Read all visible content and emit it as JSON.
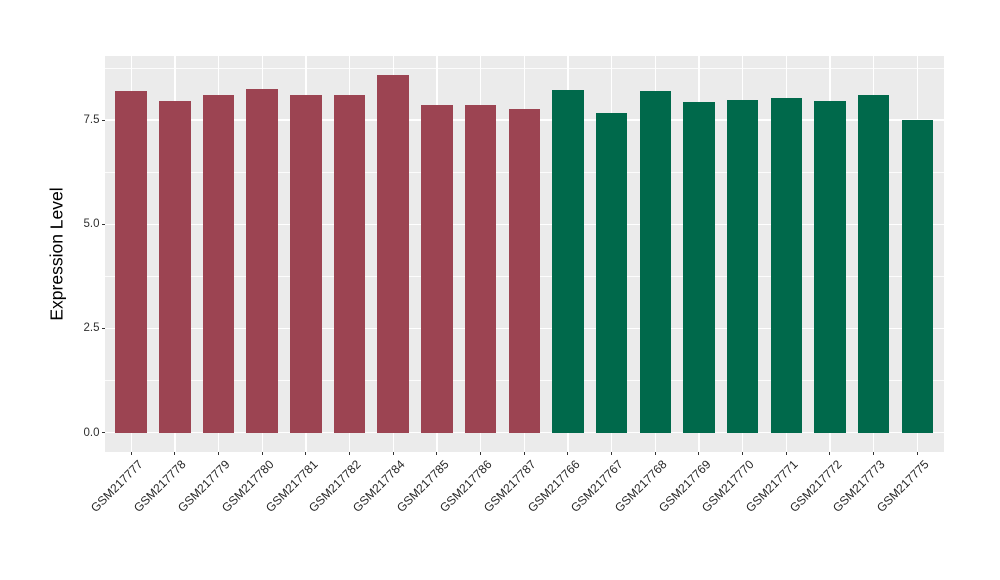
{
  "figure": {
    "colors": {
      "background": "#FFFFFF",
      "panel_background": "#EBEBEB",
      "grid_major": "#FFFFFF",
      "grid_minor": "#FFFFFF",
      "tick_mark": "#333333",
      "axis_text": "#303030",
      "axis_title": "#000000",
      "bar_maroon": "#9C4452",
      "bar_green": "#00694B"
    }
  },
  "chart_data": {
    "type": "bar",
    "title": "",
    "xlabel": "",
    "ylabel": "Expression Level",
    "legend_position": "none",
    "grid": "horizontal major+minor and vertical major per category, white on grey panel",
    "axis_range_y": [
      -0.46,
      9.05
    ],
    "ylim": [
      0,
      9.05
    ],
    "ytick_values": [
      0,
      2.5,
      5,
      7.5
    ],
    "ytick_labels": [
      "0.0",
      "2.5",
      "5.0",
      "7.5"
    ],
    "minor_ytick_values": [
      1.25,
      3.75,
      6.25,
      8.75
    ],
    "categories": [
      "GSM217777",
      "GSM217778",
      "GSM217779",
      "GSM217780",
      "GSM217781",
      "GSM217782",
      "GSM217784",
      "GSM217785",
      "GSM217786",
      "GSM217787",
      "GSM217766",
      "GSM217767",
      "GSM217768",
      "GSM217769",
      "GSM217770",
      "GSM217771",
      "GSM217772",
      "GSM217773",
      "GSM217775"
    ],
    "values": [
      8.19,
      7.96,
      8.11,
      8.24,
      8.1,
      8.1,
      8.59,
      7.87,
      7.87,
      7.76,
      8.21,
      7.67,
      8.19,
      7.93,
      7.97,
      8.04,
      7.96,
      8.1,
      7.5
    ],
    "bar_groups": [
      "maroon",
      "maroon",
      "maroon",
      "maroon",
      "maroon",
      "maroon",
      "maroon",
      "maroon",
      "maroon",
      "maroon",
      "green",
      "green",
      "green",
      "green",
      "green",
      "green",
      "green",
      "green",
      "green"
    ],
    "group_colors": {
      "maroon": "#9C4452",
      "green": "#00694B"
    }
  }
}
